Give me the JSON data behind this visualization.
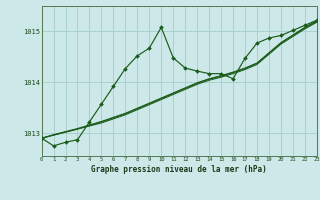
{
  "title": "Graphe pression niveau de la mer (hPa)",
  "bg_color": "#cce8e8",
  "grid_color": "#aad0d0",
  "line_color": "#1a5c1a",
  "x_min": 0,
  "x_max": 23,
  "y_min": 1012.55,
  "y_max": 1015.5,
  "yticks": [
    1013,
    1014,
    1015
  ],
  "hours": [
    0,
    1,
    2,
    3,
    4,
    5,
    6,
    7,
    8,
    9,
    10,
    11,
    12,
    13,
    14,
    15,
    16,
    17,
    18,
    19,
    20,
    21,
    22,
    23
  ],
  "line_main": [
    1012.9,
    1012.75,
    1012.82,
    1012.87,
    1013.22,
    1013.57,
    1013.92,
    1014.27,
    1014.52,
    1014.67,
    1015.08,
    1014.48,
    1014.28,
    1014.22,
    1014.17,
    1014.17,
    1014.07,
    1014.47,
    1014.77,
    1014.87,
    1014.92,
    1015.02,
    1015.12,
    1015.22
  ],
  "line_trend1": [
    1012.9,
    1012.96,
    1013.02,
    1013.08,
    1013.14,
    1013.2,
    1013.28,
    1013.36,
    1013.46,
    1013.56,
    1013.66,
    1013.76,
    1013.86,
    1013.96,
    1014.04,
    1014.1,
    1014.17,
    1014.25,
    1014.35,
    1014.55,
    1014.75,
    1014.9,
    1015.05,
    1015.18
  ],
  "line_trend2": [
    1012.9,
    1012.96,
    1013.02,
    1013.08,
    1013.15,
    1013.22,
    1013.3,
    1013.38,
    1013.48,
    1013.58,
    1013.68,
    1013.78,
    1013.88,
    1013.98,
    1014.06,
    1014.12,
    1014.19,
    1014.27,
    1014.37,
    1014.57,
    1014.77,
    1014.92,
    1015.07,
    1015.2
  ],
  "line_trend3": [
    1012.9,
    1012.97,
    1013.03,
    1013.09,
    1013.16,
    1013.23,
    1013.31,
    1013.39,
    1013.49,
    1013.59,
    1013.69,
    1013.79,
    1013.89,
    1013.99,
    1014.07,
    1014.13,
    1014.2,
    1014.28,
    1014.38,
    1014.58,
    1014.78,
    1014.93,
    1015.08,
    1015.21
  ]
}
